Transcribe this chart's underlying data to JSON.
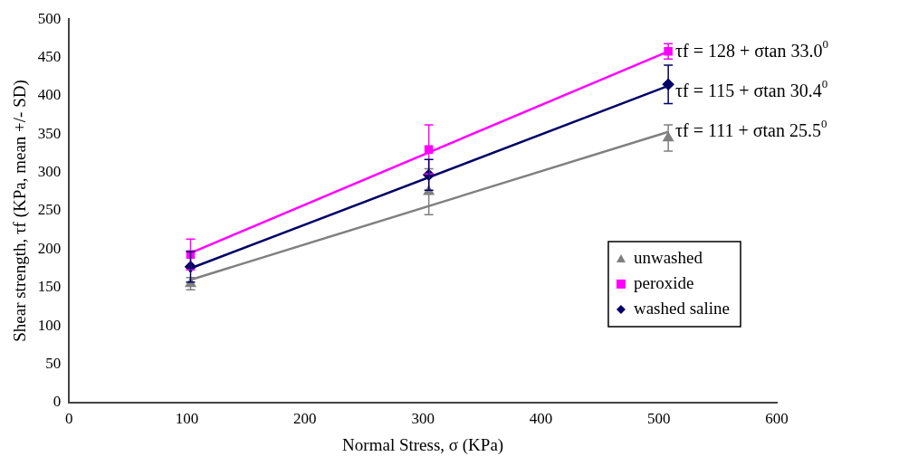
{
  "chart_data": {
    "type": "scatter",
    "xlabel": "Normal Stress, σ (KPa)",
    "ylabel": "Shear strength, τf (KPa, mean +/- SD)",
    "xlim": [
      0,
      600
    ],
    "xticks": [
      0,
      100,
      200,
      300,
      400,
      500,
      600
    ],
    "ylim": [
      0,
      500
    ],
    "yticks": [
      0,
      50,
      100,
      150,
      200,
      250,
      300,
      350,
      400,
      450,
      500
    ],
    "grid": false,
    "legend": "right",
    "series": [
      {
        "name": "unwashed",
        "type": "scatter",
        "marker": "triangle",
        "color": "#808080",
        "x": [
          103,
          305,
          508
        ],
        "values": [
          155,
          275,
          345
        ],
        "errors": [
          8,
          30,
          17
        ]
      },
      {
        "name": "peroxide",
        "type": "scatter",
        "marker": "square",
        "color": "#ff00ff",
        "x": [
          103,
          305,
          508
        ],
        "values": [
          193,
          330,
          458
        ],
        "errors": [
          20,
          32,
          10
        ]
      },
      {
        "name": "washed saline",
        "type": "scatter",
        "marker": "diamond",
        "color": "#000066",
        "x": [
          103,
          305,
          508
        ],
        "values": [
          177,
          297,
          415
        ],
        "errors": [
          20,
          20,
          25
        ]
      },
      {
        "type": "line",
        "marker": "none",
        "color": "#808080",
        "x": [
          103,
          508
        ],
        "values": [
          160,
          353
        ]
      },
      {
        "type": "line",
        "marker": "none",
        "color": "#ff00ff",
        "x": [
          103,
          508
        ],
        "values": [
          195,
          458
        ]
      },
      {
        "type": "line",
        "marker": "none",
        "color": "#000066",
        "x": [
          103,
          508
        ],
        "values": [
          175,
          413
        ]
      }
    ],
    "annotations": [
      "τf = 128 + σtan 33.0$^{0}$",
      "τf = 115 + σtan 30.4$^{0}$",
      "τf = 111 + σtan 25.5$^{0}$"
    ]
  }
}
